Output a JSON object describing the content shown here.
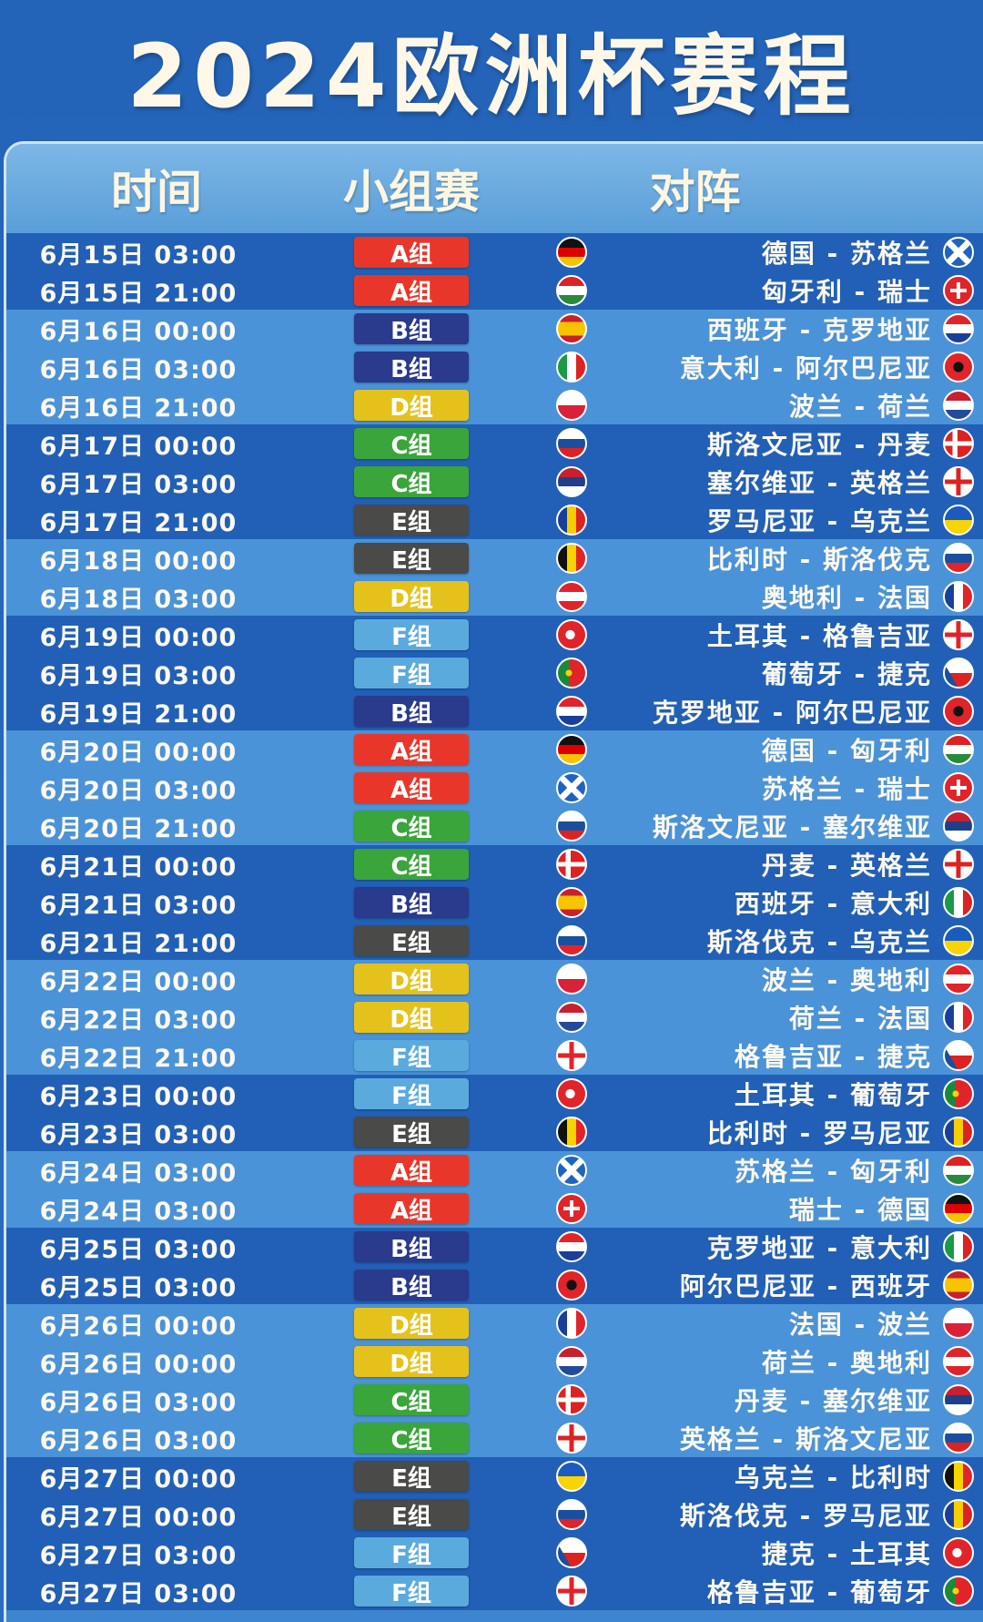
{
  "title": "2024欧洲杯赛程",
  "headers": {
    "time": "时间",
    "group": "小组赛",
    "match": "对阵"
  },
  "group_colors": {
    "A": "#e8372a",
    "B": "#2a3a8c",
    "C": "#3aa53a",
    "D": "#e5c21b",
    "E": "#4a4a48",
    "F": "#5aaade"
  },
  "matches": [
    {
      "time": "6月15日 03:00",
      "group": "A",
      "group_label": "A组",
      "home": "德国",
      "away": "苏格兰",
      "home_flag": "germany",
      "away_flag": "scotland",
      "band": "dark"
    },
    {
      "time": "6月15日 21:00",
      "group": "A",
      "group_label": "A组",
      "home": "匈牙利",
      "away": "瑞士",
      "home_flag": "hungary",
      "away_flag": "switzerland",
      "band": "dark"
    },
    {
      "time": "6月16日 00:00",
      "group": "B",
      "group_label": "B组",
      "home": "西班牙",
      "away": "克罗地亚",
      "home_flag": "spain",
      "away_flag": "croatia",
      "band": "light"
    },
    {
      "time": "6月16日 03:00",
      "group": "B",
      "group_label": "B组",
      "home": "意大利",
      "away": "阿尔巴尼亚",
      "home_flag": "italy",
      "away_flag": "albania",
      "band": "light"
    },
    {
      "time": "6月16日 21:00",
      "group": "D",
      "group_label": "D组",
      "home": "波兰",
      "away": "荷兰",
      "home_flag": "poland",
      "away_flag": "netherlands",
      "band": "light"
    },
    {
      "time": "6月17日 00:00",
      "group": "C",
      "group_label": "C组",
      "home": "斯洛文尼亚",
      "away": "丹麦",
      "home_flag": "slovenia",
      "away_flag": "denmark",
      "band": "dark"
    },
    {
      "time": "6月17日 03:00",
      "group": "C",
      "group_label": "C组",
      "home": "塞尔维亚",
      "away": "英格兰",
      "home_flag": "serbia",
      "away_flag": "england",
      "band": "dark"
    },
    {
      "time": "6月17日 21:00",
      "group": "E",
      "group_label": "E组",
      "home": "罗马尼亚",
      "away": "乌克兰",
      "home_flag": "romania",
      "away_flag": "ukraine",
      "band": "dark"
    },
    {
      "time": "6月18日 00:00",
      "group": "E",
      "group_label": "E组",
      "home": "比利时",
      "away": "斯洛伐克",
      "home_flag": "belgium",
      "away_flag": "slovakia",
      "band": "light"
    },
    {
      "time": "6月18日 03:00",
      "group": "D",
      "group_label": "D组",
      "home": "奥地利",
      "away": "法国",
      "home_flag": "austria",
      "away_flag": "france",
      "band": "light"
    },
    {
      "time": "6月19日 00:00",
      "group": "F",
      "group_label": "F组",
      "home": "土耳其",
      "away": "格鲁吉亚",
      "home_flag": "turkey",
      "away_flag": "georgia",
      "band": "dark"
    },
    {
      "time": "6月19日 03:00",
      "group": "F",
      "group_label": "F组",
      "home": "葡萄牙",
      "away": "捷克",
      "home_flag": "portugal",
      "away_flag": "czech",
      "band": "dark"
    },
    {
      "time": "6月19日 21:00",
      "group": "B",
      "group_label": "B组",
      "home": "克罗地亚",
      "away": "阿尔巴尼亚",
      "home_flag": "croatia",
      "away_flag": "albania",
      "band": "dark"
    },
    {
      "time": "6月20日 00:00",
      "group": "A",
      "group_label": "A组",
      "home": "德国",
      "away": "匈牙利",
      "home_flag": "germany",
      "away_flag": "hungary",
      "band": "light"
    },
    {
      "time": "6月20日 03:00",
      "group": "A",
      "group_label": "A组",
      "home": "苏格兰",
      "away": "瑞士",
      "home_flag": "scotland",
      "away_flag": "switzerland",
      "band": "light"
    },
    {
      "time": "6月20日 21:00",
      "group": "C",
      "group_label": "C组",
      "home": "斯洛文尼亚",
      "away": "塞尔维亚",
      "home_flag": "slovenia",
      "away_flag": "serbia",
      "band": "light"
    },
    {
      "time": "6月21日 00:00",
      "group": "C",
      "group_label": "C组",
      "home": "丹麦",
      "away": "英格兰",
      "home_flag": "denmark",
      "away_flag": "england",
      "band": "dark"
    },
    {
      "time": "6月21日 03:00",
      "group": "B",
      "group_label": "B组",
      "home": "西班牙",
      "away": "意大利",
      "home_flag": "spain",
      "away_flag": "italy",
      "band": "dark"
    },
    {
      "time": "6月21日 21:00",
      "group": "E",
      "group_label": "E组",
      "home": "斯洛伐克",
      "away": "乌克兰",
      "home_flag": "slovakia",
      "away_flag": "ukraine",
      "band": "dark"
    },
    {
      "time": "6月22日 00:00",
      "group": "D",
      "group_label": "D组",
      "home": "波兰",
      "away": "奥地利",
      "home_flag": "poland",
      "away_flag": "austria",
      "band": "light"
    },
    {
      "time": "6月22日 03:00",
      "group": "D",
      "group_label": "D组",
      "home": "荷兰",
      "away": "法国",
      "home_flag": "netherlands",
      "away_flag": "france",
      "band": "light"
    },
    {
      "time": "6月22日 21:00",
      "group": "F",
      "group_label": "F组",
      "home": "格鲁吉亚",
      "away": "捷克",
      "home_flag": "georgia",
      "away_flag": "czech",
      "band": "light"
    },
    {
      "time": "6月23日 00:00",
      "group": "F",
      "group_label": "F组",
      "home": "土耳其",
      "away": "葡萄牙",
      "home_flag": "turkey",
      "away_flag": "portugal",
      "band": "dark"
    },
    {
      "time": "6月23日 03:00",
      "group": "E",
      "group_label": "E组",
      "home": "比利时",
      "away": "罗马尼亚",
      "home_flag": "belgium",
      "away_flag": "romania",
      "band": "dark"
    },
    {
      "time": "6月24日 03:00",
      "group": "A",
      "group_label": "A组",
      "home": "苏格兰",
      "away": "匈牙利",
      "home_flag": "scotland",
      "away_flag": "hungary",
      "band": "light"
    },
    {
      "time": "6月24日 03:00",
      "group": "A",
      "group_label": "A组",
      "home": "瑞士",
      "away": "德国",
      "home_flag": "switzerland",
      "away_flag": "germany",
      "band": "light"
    },
    {
      "time": "6月25日 03:00",
      "group": "B",
      "group_label": "B组",
      "home": "克罗地亚",
      "away": "意大利",
      "home_flag": "croatia",
      "away_flag": "italy",
      "band": "dark"
    },
    {
      "time": "6月25日 03:00",
      "group": "B",
      "group_label": "B组",
      "home": "阿尔巴尼亚",
      "away": "西班牙",
      "home_flag": "albania",
      "away_flag": "spain",
      "band": "dark"
    },
    {
      "time": "6月26日 00:00",
      "group": "D",
      "group_label": "D组",
      "home": "法国",
      "away": "波兰",
      "home_flag": "france",
      "away_flag": "poland",
      "band": "light"
    },
    {
      "time": "6月26日 00:00",
      "group": "D",
      "group_label": "D组",
      "home": "荷兰",
      "away": "奥地利",
      "home_flag": "netherlands",
      "away_flag": "austria",
      "band": "light"
    },
    {
      "time": "6月26日 03:00",
      "group": "C",
      "group_label": "C组",
      "home": "丹麦",
      "away": "塞尔维亚",
      "home_flag": "denmark",
      "away_flag": "serbia",
      "band": "light"
    },
    {
      "time": "6月26日 03:00",
      "group": "C",
      "group_label": "C组",
      "home": "英格兰",
      "away": "斯洛文尼亚",
      "home_flag": "england",
      "away_flag": "slovenia",
      "band": "light"
    },
    {
      "time": "6月27日 00:00",
      "group": "E",
      "group_label": "E组",
      "home": "乌克兰",
      "away": "比利时",
      "home_flag": "ukraine",
      "away_flag": "belgium",
      "band": "dark"
    },
    {
      "time": "6月27日 00:00",
      "group": "E",
      "group_label": "E组",
      "home": "斯洛伐克",
      "away": "罗马尼亚",
      "home_flag": "slovakia",
      "away_flag": "romania",
      "band": "dark"
    },
    {
      "time": "6月27日 03:00",
      "group": "F",
      "group_label": "F组",
      "home": "捷克",
      "away": "土耳其",
      "home_flag": "czech",
      "away_flag": "turkey",
      "band": "dark"
    },
    {
      "time": "6月27日 03:00",
      "group": "F",
      "group_label": "F组",
      "home": "格鲁吉亚",
      "away": "葡萄牙",
      "home_flag": "georgia",
      "away_flag": "portugal",
      "band": "dark"
    }
  ]
}
